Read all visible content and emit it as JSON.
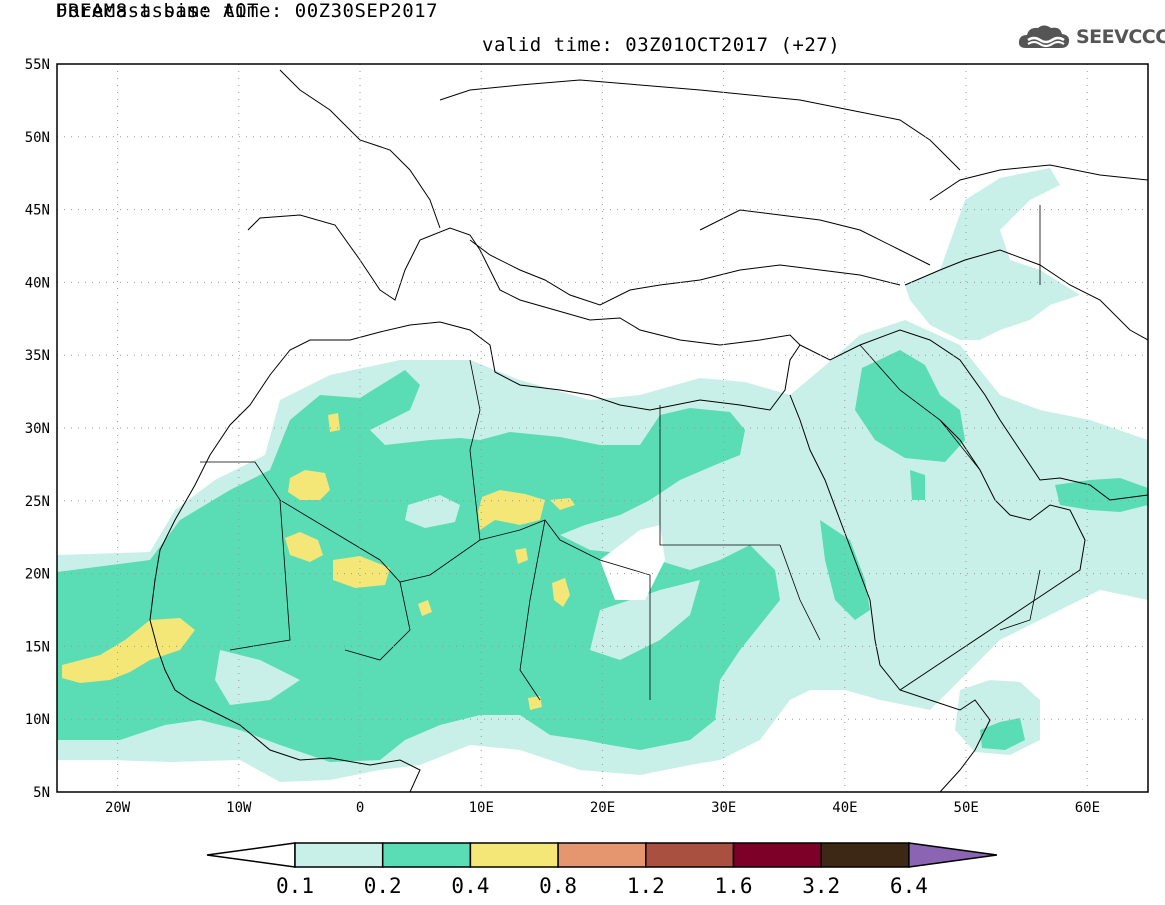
{
  "header": {
    "title_line1": "DREAM8-assim: AOT",
    "title_line2": "Forecast base time: 00Z30SEP2017",
    "valid_time": "valid time: 03Z01OCT2017 (+27)",
    "logo_text": "SEEVCCC",
    "logo_icon": "cloud-icon"
  },
  "map": {
    "lon_range": [
      -25,
      65
    ],
    "lat_range": [
      5,
      55
    ],
    "lat_labels": [
      "55N",
      "50N",
      "45N",
      "40N",
      "35N",
      "30N",
      "25N",
      "20N",
      "15N",
      "10N",
      "5N"
    ],
    "lon_labels": [
      "20W",
      "10W",
      "0",
      "10E",
      "20E",
      "30E",
      "40E",
      "50E",
      "60E"
    ],
    "grid": "dotted",
    "variable": "AOT"
  },
  "legend": {
    "levels": [
      "0.1",
      "0.2",
      "0.4",
      "0.8",
      "1.2",
      "1.6",
      "3.2",
      "6.4"
    ],
    "colors": [
      "#ffffff",
      "#c8f0e8",
      "#5adcb4",
      "#f5e678",
      "#e6966e",
      "#aa5041",
      "#7d0028",
      "#3c2814",
      "#8c64b4"
    ]
  }
}
